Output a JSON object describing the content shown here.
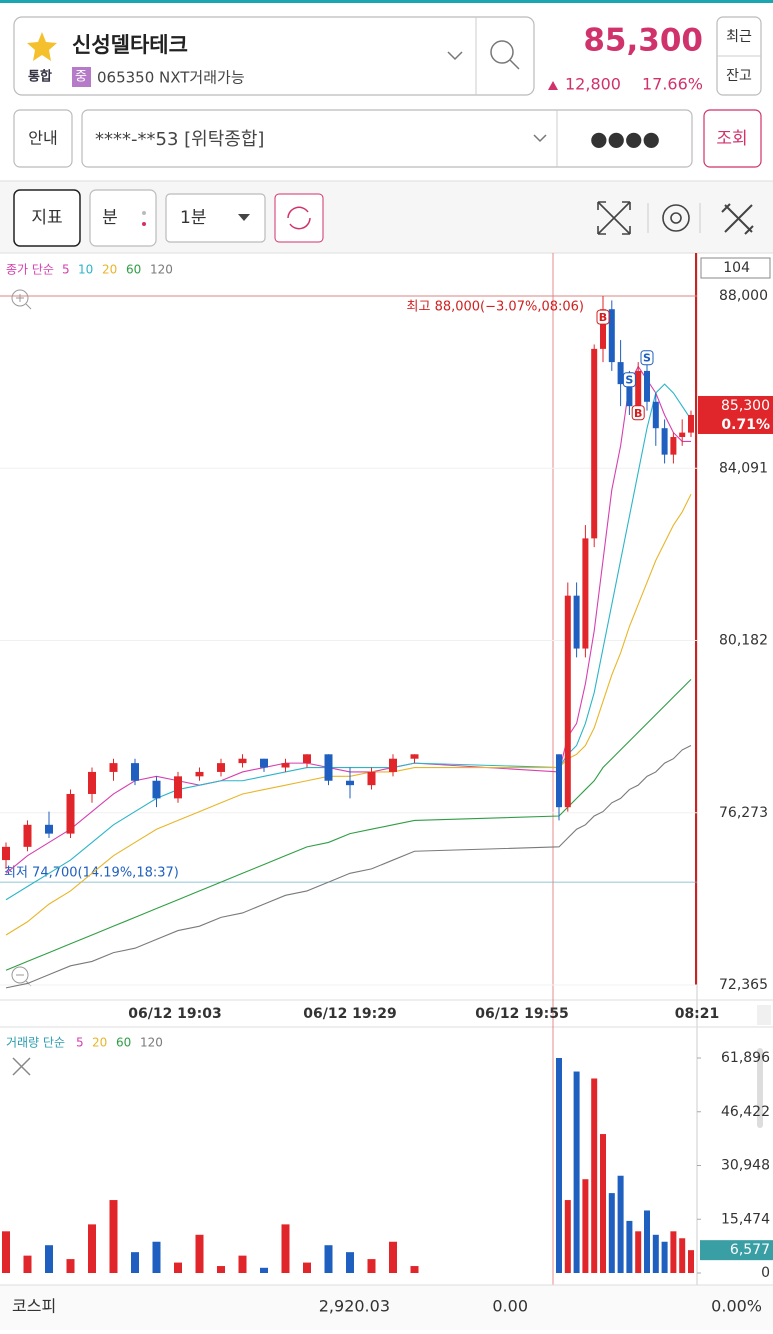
{
  "header": {
    "title": "신성델타테크",
    "tag": "통합",
    "badge": "중",
    "code": "065350 NXT거래가능",
    "price": "85,300",
    "change": "12,800",
    "change_rate": "17.66%",
    "buttons": [
      "최근",
      "잔고"
    ]
  },
  "account": {
    "info": "안내",
    "number": "****-**53 [위탁종합]",
    "password": "●●●●",
    "query": "조회"
  },
  "toolbar": {
    "indicator": "지표",
    "unit": "분",
    "period": "1분"
  },
  "chart_data": [
    {
      "type": "candlestick",
      "legend": "종가 단순",
      "up_color": "#e0262a",
      "down_color": "#1f5fbf",
      "candles": [
        [
          75200,
          75600,
          75000,
          75500
        ],
        [
          75500,
          76100,
          75400,
          76000
        ],
        [
          76000,
          76300,
          75700,
          75800
        ],
        [
          75800,
          76800,
          75700,
          76700
        ],
        [
          76700,
          77300,
          76500,
          77200
        ],
        [
          77200,
          77500,
          77000,
          77400
        ],
        [
          77400,
          77500,
          76900,
          77000
        ],
        [
          77000,
          77100,
          76400,
          76600
        ],
        [
          76600,
          77200,
          76500,
          77100
        ],
        [
          77100,
          77300,
          77000,
          77200
        ],
        [
          77200,
          77500,
          77100,
          77400
        ],
        [
          77400,
          77600,
          77300,
          77500
        ],
        [
          77500,
          77500,
          77200,
          77300
        ],
        [
          77300,
          77500,
          77200,
          77400
        ],
        [
          77400,
          77600,
          77300,
          77600
        ],
        [
          77600,
          77600,
          76900,
          77000
        ],
        [
          77000,
          77300,
          76600,
          76900
        ],
        [
          76900,
          77300,
          76800,
          77200
        ],
        [
          77200,
          77600,
          77100,
          77500
        ],
        [
          77500,
          77600,
          77400,
          77600
        ],
        [
          77600,
          77600,
          76100,
          76400
        ],
        [
          76400,
          81500,
          76300,
          81200
        ],
        [
          81200,
          81500,
          79800,
          80000
        ],
        [
          80000,
          82800,
          79800,
          82500
        ],
        [
          82500,
          86900,
          82300,
          86800
        ],
        [
          86800,
          88000,
          86500,
          87700
        ],
        [
          87700,
          87900,
          86300,
          86500
        ],
        [
          86500,
          87000,
          85500,
          86000
        ],
        [
          86000,
          86300,
          85300,
          85500
        ],
        [
          85500,
          86500,
          85300,
          86300
        ],
        [
          86300,
          86500,
          85400,
          85600
        ],
        [
          85600,
          85800,
          84600,
          85000
        ],
        [
          85000,
          85200,
          84200,
          84400
        ],
        [
          84400,
          84900,
          84200,
          84800
        ],
        [
          84800,
          85200,
          84600,
          84900
        ],
        [
          84900,
          85400,
          84800,
          85300
        ]
      ],
      "series": [
        {
          "name": "5",
          "color": "#d63fb0",
          "values": [
            74900,
            75300,
            75600,
            75900,
            76300,
            76700,
            77000,
            77100,
            77000,
            76900,
            77000,
            77200,
            77300,
            77400,
            77400,
            77300,
            77200,
            77200,
            77300,
            77400,
            77200,
            78000,
            78300,
            79200,
            80400,
            82000,
            83600,
            84600,
            86000,
            86400,
            86100,
            85800,
            85300,
            84900,
            84700,
            84700
          ]
        },
        {
          "name": "10",
          "color": "#2bb5c8",
          "values": [
            74300,
            74600,
            74900,
            75200,
            75600,
            76000,
            76300,
            76600,
            76800,
            76900,
            77000,
            77000,
            77100,
            77200,
            77300,
            77300,
            77300,
            77300,
            77300,
            77400,
            77300,
            77600,
            77800,
            78300,
            79000,
            80000,
            81000,
            82000,
            83000,
            84000,
            85000,
            85800,
            86000,
            85800,
            85500,
            85200
          ]
        },
        {
          "name": "20",
          "color": "#e8b52a",
          "values": [
            73500,
            73800,
            74200,
            74500,
            74900,
            75300,
            75600,
            75900,
            76100,
            76300,
            76500,
            76700,
            76800,
            76900,
            77000,
            77100,
            77100,
            77200,
            77200,
            77300,
            77300,
            77500,
            77600,
            77800,
            78200,
            78800,
            79400,
            79900,
            80500,
            81000,
            81500,
            82000,
            82400,
            82800,
            83100,
            83500
          ]
        },
        {
          "name": "60",
          "color": "#2f9e44",
          "values": [
            72700,
            72900,
            73100,
            73300,
            73500,
            73700,
            73900,
            74100,
            74300,
            74500,
            74700,
            74900,
            75100,
            75300,
            75500,
            75600,
            75800,
            75900,
            76000,
            76100,
            76200,
            76400,
            76600,
            76800,
            77000,
            77300,
            77500,
            77700,
            77900,
            78100,
            78300,
            78500,
            78700,
            78900,
            79100,
            79300
          ]
        },
        {
          "name": "120",
          "color": "#7a7a7a",
          "values": [
            72300,
            72400,
            72600,
            72800,
            72900,
            73100,
            73200,
            73400,
            73600,
            73700,
            73900,
            74000,
            74200,
            74400,
            74500,
            74700,
            74900,
            75000,
            75200,
            75400,
            75500,
            75700,
            75900,
            76000,
            76200,
            76300,
            76500,
            76600,
            76800,
            76900,
            77100,
            77200,
            77400,
            77500,
            77700,
            77800
          ]
        }
      ],
      "ylim": [
        72365,
        88000
      ],
      "yticks": [
        {
          "value": 88000,
          "label": "88,000"
        },
        {
          "value": 84091,
          "label": "84,091"
        },
        {
          "value": 80182,
          "label": "80,182"
        },
        {
          "value": 76273,
          "label": "76,273"
        },
        {
          "value": 72365,
          "label": "72,365"
        }
      ],
      "x_labels": [
        "06/12 19:03",
        "06/12 19:29",
        "06/12 19:55",
        "08:21"
      ],
      "high": {
        "value": 88000,
        "label": "최고 88,000(−3.07%,08:06)"
      },
      "low": {
        "value": 74700,
        "label": "최저 74,700(14.19%,18:37)"
      },
      "last": {
        "value": 85300,
        "label": "85,300",
        "change": "0.71%"
      },
      "top_box": "104",
      "trade_marks": [
        "B",
        "S",
        "B",
        "S"
      ]
    },
    {
      "type": "bar",
      "legend": "거래량 단순",
      "values": [
        12000,
        5000,
        8000,
        4000,
        14000,
        21000,
        6000,
        9000,
        3000,
        11000,
        2000,
        5000,
        1500,
        14000,
        3000,
        8000,
        6000,
        4000,
        9000,
        2000,
        61896,
        21000,
        58000,
        27000,
        56000,
        40000,
        23000,
        28000,
        15000,
        12000,
        18000,
        11000,
        9000,
        12000,
        10000,
        6577
      ],
      "legend_items": [
        {
          "name": "5",
          "color": "#d63fb0"
        },
        {
          "name": "20",
          "color": "#e8b52a"
        },
        {
          "name": "60",
          "color": "#2f9e44"
        },
        {
          "name": "120",
          "color": "#7a7a7a"
        }
      ],
      "ylim": [
        0,
        61896
      ],
      "yticks": [
        {
          "value": 61896,
          "label": "61,896"
        },
        {
          "value": 46422,
          "label": "46,422"
        },
        {
          "value": 30948,
          "label": "30,948"
        },
        {
          "value": 15474,
          "label": "15,474"
        },
        {
          "value": 0,
          "label": "0"
        }
      ],
      "last": {
        "value": 6577,
        "label": "6,577"
      }
    }
  ],
  "footer": {
    "index": "코스피",
    "value": "2,920.03",
    "change": "0.00",
    "rate": "0.00%"
  }
}
